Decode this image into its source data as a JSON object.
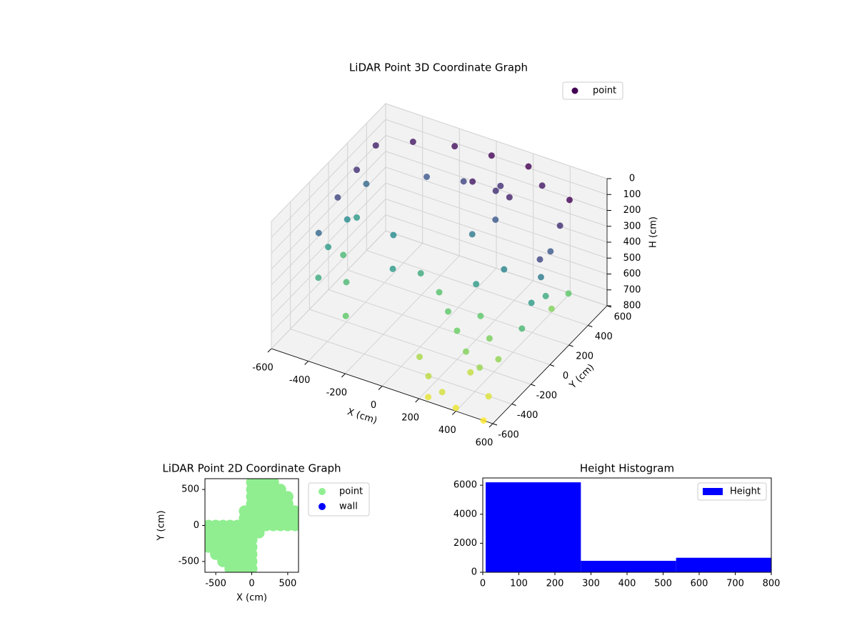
{
  "chart_data": [
    {
      "type": "scatter3d",
      "title": "LiDAR Point 3D Coordinate Graph",
      "xlabel": "X (cm)",
      "ylabel": "Y (cm)",
      "zlabel": "H (cm)",
      "xlim": [
        -600,
        600
      ],
      "ylim": [
        -600,
        600
      ],
      "zlim": [
        800,
        0
      ],
      "xticks": [
        -600,
        -400,
        -200,
        0,
        200,
        400,
        600
      ],
      "yticks": [
        -600,
        -400,
        -200,
        0,
        200,
        400,
        600
      ],
      "zticks": [
        0,
        100,
        200,
        300,
        400,
        500,
        600,
        700,
        800
      ],
      "grid": true,
      "legend": "upper right",
      "colormap": "viridis",
      "series": [
        {
          "name": "point",
          "color": "#440154",
          "x": [
            -550,
            -550,
            -550,
            -550,
            -550,
            -550,
            -550,
            -500,
            -550,
            -520,
            -400,
            -200,
            0,
            200,
            300,
            100,
            -100,
            -300,
            0,
            100,
            150,
            50,
            200,
            500,
            500,
            500,
            500,
            500,
            500,
            520,
            480,
            500,
            520,
            100,
            200,
            300,
            400,
            250,
            350,
            450,
            0,
            -300,
            -200,
            -100,
            -400,
            -300,
            200,
            300,
            200,
            300,
            400,
            500,
            100,
            350,
            550,
            250
          ],
          "y": [
            -200,
            0,
            200,
            400,
            -100,
            100,
            300,
            -300,
            200,
            0,
            500,
            550,
            550,
            550,
            500,
            450,
            450,
            450,
            350,
            400,
            300,
            250,
            350,
            400,
            300,
            200,
            100,
            0,
            -100,
            350,
            250,
            150,
            50,
            -100,
            -200,
            -300,
            -350,
            -50,
            -150,
            -250,
            0,
            100,
            -100,
            0,
            -200,
            -400,
            0,
            100,
            -500,
            -550,
            -600,
            -450,
            -400,
            -350,
            -600,
            -600
          ],
          "z": [
            300,
            200,
            150,
            120,
            450,
            400,
            300,
            500,
            450,
            550,
            100,
            80,
            60,
            50,
            100,
            150,
            200,
            250,
            100,
            150,
            250,
            350,
            120,
            50,
            150,
            250,
            350,
            450,
            550,
            600,
            650,
            500,
            200,
            600,
            620,
            650,
            680,
            600,
            640,
            670,
            580,
            400,
            450,
            500,
            550,
            600,
            450,
            380,
            720,
            750,
            780,
            760,
            700,
            730,
            800,
            770
          ]
        }
      ]
    },
    {
      "type": "scatter",
      "title": "LiDAR Point 2D Coordinate Graph",
      "xlabel": "X (cm)",
      "ylabel": "Y (cm)",
      "xlim": [
        -650,
        650
      ],
      "ylim": [
        -650,
        650
      ],
      "xticks": [
        -500,
        0,
        500
      ],
      "yticks": [
        -500,
        0,
        500
      ],
      "legend": "outside right",
      "series": [
        {
          "name": "point",
          "color": "#90ee90",
          "x": [
            0,
            100,
            200,
            300,
            0,
            100,
            200,
            300,
            400,
            0,
            100,
            200,
            300,
            400,
            500,
            0,
            100,
            200,
            300,
            400,
            500,
            -100,
            0,
            100,
            200,
            300,
            400,
            500,
            600,
            -100,
            0,
            100,
            200,
            300,
            400,
            500,
            600,
            -600,
            -500,
            -400,
            -300,
            -200,
            -100,
            0,
            100,
            200,
            300,
            400,
            500,
            600,
            -600,
            -500,
            -400,
            -300,
            -200,
            -100,
            0,
            100,
            -600,
            -500,
            -400,
            -300,
            -200,
            -100,
            0,
            -600,
            -500,
            -400,
            -300,
            -200,
            -100,
            0,
            -500,
            -400,
            -300,
            -200,
            -100,
            0,
            -400,
            -300,
            -200,
            -100,
            0,
            -300,
            -200,
            -100,
            0
          ],
          "y": [
            600,
            600,
            600,
            600,
            500,
            500,
            500,
            500,
            500,
            400,
            400,
            400,
            400,
            400,
            400,
            300,
            300,
            300,
            300,
            300,
            300,
            200,
            200,
            200,
            200,
            200,
            200,
            200,
            200,
            100,
            100,
            100,
            100,
            100,
            100,
            100,
            100,
            0,
            0,
            0,
            0,
            0,
            0,
            0,
            0,
            0,
            0,
            0,
            0,
            0,
            -100,
            -100,
            -100,
            -100,
            -100,
            -100,
            -100,
            -100,
            -200,
            -200,
            -200,
            -200,
            -200,
            -200,
            -200,
            -300,
            -300,
            -300,
            -300,
            -300,
            -300,
            -300,
            -400,
            -400,
            -400,
            -400,
            -400,
            -400,
            -500,
            -500,
            -500,
            -500,
            -500,
            -600,
            -600,
            -600,
            -600
          ]
        },
        {
          "name": "wall",
          "color": "#0000ff",
          "x": [],
          "y": []
        }
      ]
    },
    {
      "type": "histogram",
      "title": "Height Histogram",
      "bins": [
        8,
        272,
        536,
        800
      ],
      "counts": [
        6200,
        790,
        1000
      ],
      "series_name": "Height",
      "color": "#0000ff",
      "xlim": [
        0,
        800
      ],
      "ylim": [
        0,
        6500
      ],
      "xticks": [
        0,
        100,
        200,
        300,
        400,
        500,
        600,
        700,
        800
      ],
      "yticks": [
        0,
        2000,
        4000,
        6000
      ],
      "legend": "upper right"
    }
  ]
}
